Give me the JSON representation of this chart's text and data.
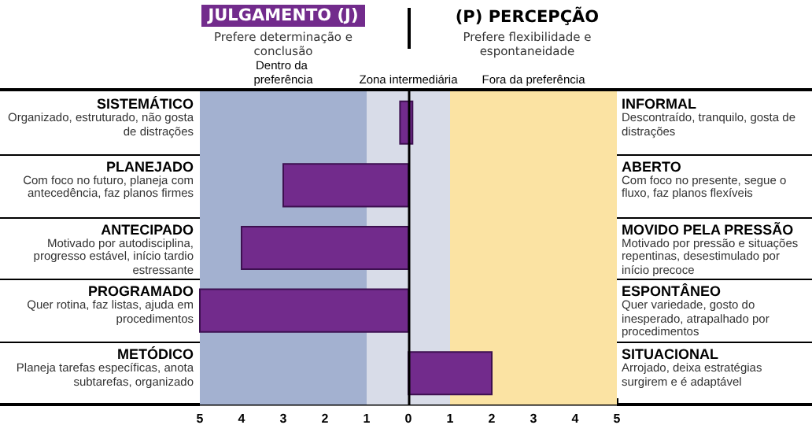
{
  "chart_data": {
    "type": "bar",
    "orientation": "horizontal",
    "categories": [
      "SISTEMÁTICO\nOrganizado, estruturado, não gosta de distrações",
      "PLANEJADO\nCom foco no futuro, planeja com antecedência, faz planos firmes",
      "ANTECIPADO\nMotivado por autodisciplina, progresso estável, início tardio estressante",
      "PROGRAMADO\nQuer rotina, faz listas, ajuda em procedimentos",
      "METÓDICO\nPlaneja tarefas específicas, anota subtarefas, organizado"
    ],
    "y2_categories": [
      "INFORMAL\nDescontraído, tranquilo, gosta de distrações",
      "ABERTO\nCom foco no presente, segue o fluxo, faz planos flexíveis",
      "MOVIDO PELA PRESSÃO\nMotivado por pressão e situações repentinas, desestimulado por início precoce",
      "ESPONTÂNEO\nQuer variedade, gosto do inesperado, atrapalhado por procedimentos",
      "SITUACIONAL\nArrojado, deixa estratégias surgirem e é adaptável"
    ],
    "values": [
      0.3,
      -3,
      -4,
      -5,
      2
    ],
    "base": [
      -0.2,
      0,
      0,
      0,
      0
    ],
    "color": "#722b8c",
    "xlim": [
      -5,
      5
    ],
    "xticks": [
      {
        "value": -5,
        "label": "5"
      },
      {
        "value": -4,
        "label": "4"
      },
      {
        "value": -3,
        "label": "3"
      },
      {
        "value": -2,
        "label": "2"
      },
      {
        "value": -1,
        "label": "1"
      },
      0,
      1,
      2,
      3,
      4,
      5
    ],
    "bands": [
      {
        "axis": "x",
        "from": -5,
        "to": -1,
        "label": "Dentro da preferência",
        "color": "#a3b1d0"
      },
      {
        "axis": "x",
        "from": -1,
        "to": 1,
        "label": "Zona intermediária",
        "color": "#d8dce8"
      },
      {
        "axis": "x",
        "from": 1,
        "to": 5,
        "label": "Fora da preferência",
        "color": "#fbe3a3"
      }
    ],
    "ref_lines": [
      {
        "axis": "x",
        "value": 0,
        "color": "#000000"
      }
    ],
    "annotations": [
      "JULGAMENTO (J)",
      "Prefere determinação e conclusão",
      "(P) PERCEPÇÃO",
      "Prefere flexibilidade e espontaneidade"
    ],
    "grid": false
  }
}
